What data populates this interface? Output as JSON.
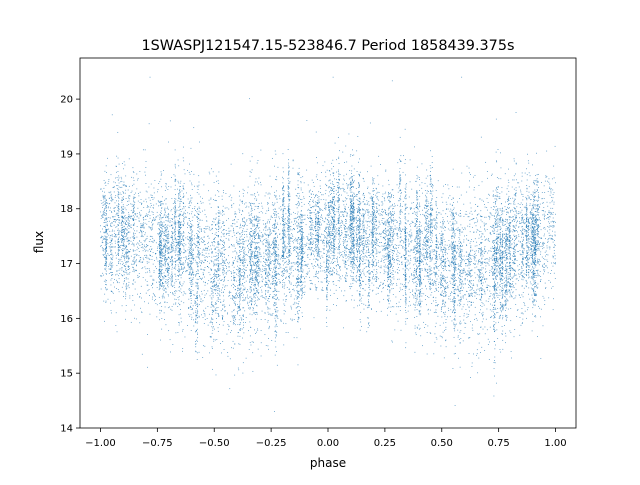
{
  "chart_data": {
    "type": "scatter",
    "title": "1SWASPJ121547.15-523846.7 Period 1858439.375s",
    "xlabel": "phase",
    "ylabel": "flux",
    "xlim": [
      -1.09,
      1.09
    ],
    "ylim": [
      14.0,
      20.75
    ],
    "xticks": [
      -1.0,
      -0.75,
      -0.5,
      -0.25,
      0.0,
      0.25,
      0.5,
      0.75,
      1.0
    ],
    "xtick_labels": [
      "−1.00",
      "−0.75",
      "−0.50",
      "−0.25",
      "0.00",
      "0.25",
      "0.50",
      "0.75",
      "1.00"
    ],
    "yticks": [
      14,
      15,
      16,
      17,
      18,
      19,
      20
    ],
    "ytick_labels": [
      "14",
      "15",
      "16",
      "17",
      "18",
      "19",
      "20"
    ],
    "grid": false,
    "legend": "none",
    "marker_color": "#1f77b4",
    "x_range": [
      -1.0,
      1.0
    ],
    "point_count": 14000,
    "profile": {
      "phase": [
        -1.0,
        -0.9,
        -0.8,
        -0.7,
        -0.6,
        -0.5,
        -0.4,
        -0.3,
        -0.2,
        -0.1,
        0.0,
        0.1,
        0.2,
        0.3,
        0.4,
        0.5,
        0.6,
        0.7,
        0.8,
        0.9,
        1.0
      ],
      "median_flux": [
        17.6,
        17.6,
        17.4,
        17.3,
        17.2,
        17.0,
        16.9,
        17.0,
        17.2,
        17.4,
        17.6,
        17.6,
        17.4,
        17.3,
        17.2,
        17.0,
        16.9,
        17.0,
        17.2,
        17.4,
        17.6
      ],
      "spread": [
        0.55,
        0.6,
        0.6,
        0.6,
        0.65,
        0.7,
        0.7,
        0.7,
        0.65,
        0.6,
        0.55,
        0.6,
        0.6,
        0.6,
        0.65,
        0.7,
        0.7,
        0.7,
        0.65,
        0.6,
        0.55
      ]
    },
    "flux_extremes": {
      "min": 14.3,
      "max": 20.4
    }
  }
}
